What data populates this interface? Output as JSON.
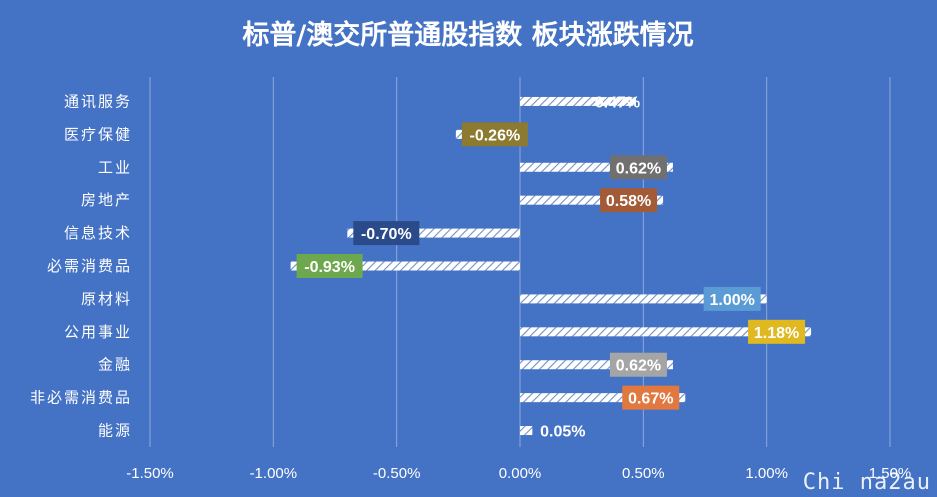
{
  "chart_data": {
    "type": "bar",
    "orientation": "horizontal",
    "title": "标普/澳交所普通股指数 板块涨跌情况",
    "categories": [
      "通讯服务",
      "医疗保健",
      "工业",
      "房地产",
      "信息技术",
      "必需消费品",
      "原材料",
      "公用事业",
      "金融",
      "非必需消费品",
      "能源"
    ],
    "values": [
      0.47,
      -0.26,
      0.62,
      0.58,
      -0.7,
      -0.93,
      1.0,
      1.18,
      0.62,
      0.67,
      0.05
    ],
    "data_labels": [
      "0.47%",
      "-0.26%",
      "0.62%",
      "0.58%",
      "-0.70%",
      "-0.93%",
      "1.00%",
      "1.18%",
      "0.62%",
      "0.67%",
      "0.05%"
    ],
    "label_colors": [
      "#4472c4",
      "#8c7a30",
      "#707070",
      "#a35a36",
      "#2a4a8a",
      "#6ea84e",
      "#5b9bd5",
      "#e0b820",
      "#a5a5a5",
      "#e07840",
      "#4472c4"
    ],
    "bar_colors": [
      "#4472c4",
      "#8c7a30",
      "#707070",
      "#a35a36",
      "#2a4a8a",
      "#6ea84e",
      "#5b9bd5",
      "#e0b820",
      "#a5a5a5",
      "#e07840",
      "#4472c4"
    ],
    "xlim": [
      -1.5,
      1.5
    ],
    "x_ticks": [
      -1.5,
      -1.0,
      -0.5,
      0.0,
      0.5,
      1.0,
      1.5
    ],
    "x_tick_labels": [
      "-1.50%",
      "-1.00%",
      "-0.50%",
      "0.00%",
      "0.50%",
      "1.00%",
      "1.50%"
    ],
    "grid": true,
    "colors": {
      "background": "#4472c4",
      "text": "#ffffff",
      "grid": "#8ea9db"
    }
  },
  "watermark": "Chi na2au"
}
